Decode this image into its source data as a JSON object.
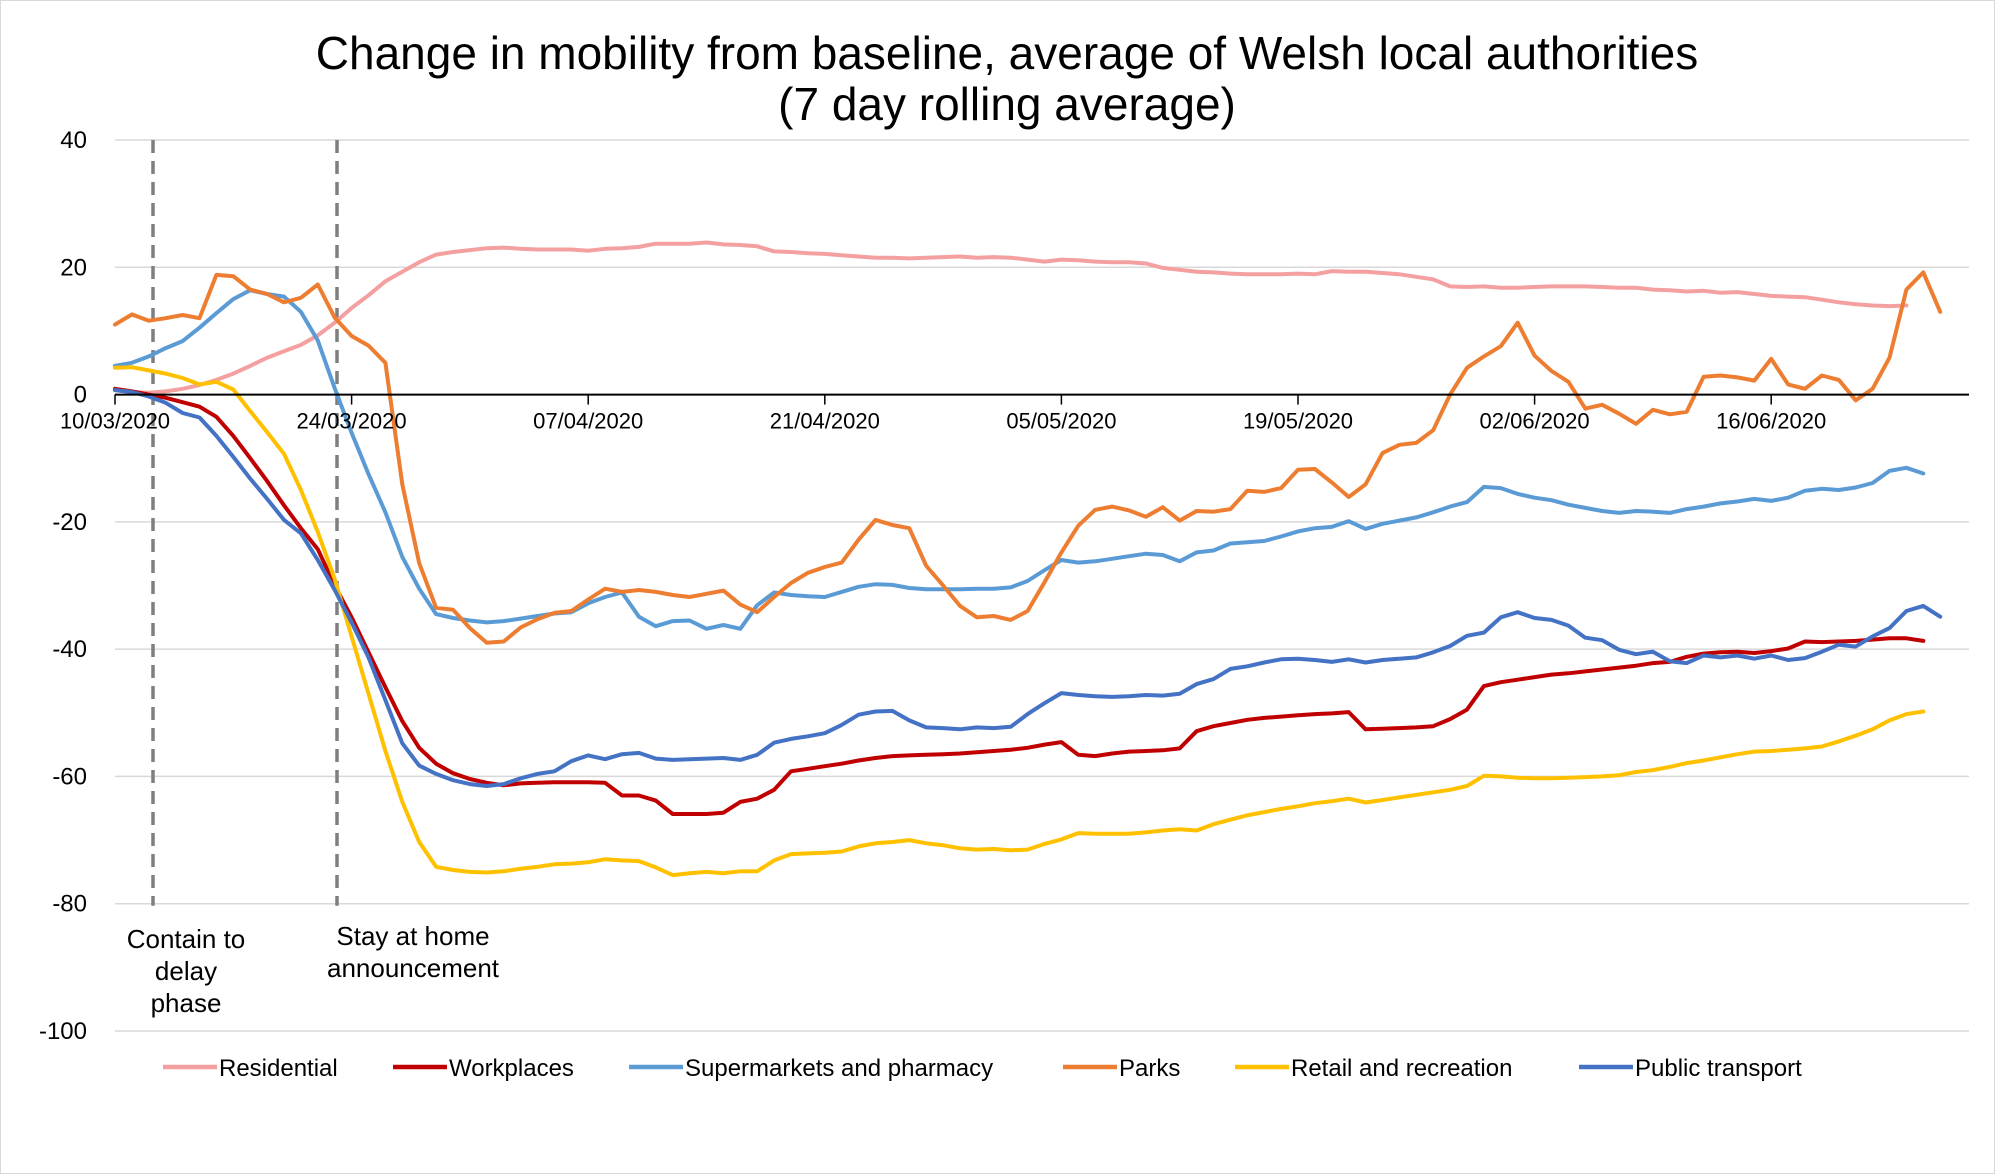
{
  "chart_data": {
    "type": "line",
    "title": "Change in mobility from baseline, average of Welsh local authorities",
    "subtitle": "(7 day rolling average)",
    "xlabel": "",
    "ylabel": "",
    "ylim": [
      -100,
      40
    ],
    "yticks": [
      40,
      20,
      0,
      -20,
      -40,
      -60,
      -80,
      -100
    ],
    "x_start": "10/03/2020",
    "x_end": "28/06/2020",
    "x_tick_labels": [
      "10/03/2020",
      "24/03/2020",
      "07/04/2020",
      "21/04/2020",
      "05/05/2020",
      "19/05/2020",
      "02/06/2020",
      "16/06/2020"
    ],
    "grid": "horizontal",
    "legend_position": "bottom",
    "annotations": [
      {
        "date": "12/03/2020",
        "lines": [
          "Contain to",
          "delay",
          "phase"
        ]
      },
      {
        "date": "23/03/2020",
        "lines": [
          "Stay at home",
          "announcement"
        ]
      }
    ],
    "series": [
      {
        "name": "Residential",
        "color": "#F4A0A0",
        "values": [
          0.7,
          0.4,
          0.3,
          0.5,
          0.9,
          1.5,
          2.3,
          3.3,
          4.5,
          5.8,
          6.8,
          7.8,
          9.3,
          11.3,
          13.6,
          15.6,
          17.8,
          19.3,
          20.8,
          22.0,
          22.4,
          22.7,
          23.0,
          23.1,
          22.9,
          22.8,
          22.8,
          22.8,
          22.6,
          22.9,
          23.0,
          23.2,
          23.7,
          23.7,
          23.7,
          23.9,
          23.6,
          23.5,
          23.3,
          22.5,
          22.4,
          22.2,
          22.1,
          21.9,
          21.7,
          21.5,
          21.5,
          21.4,
          21.5,
          21.6,
          21.7,
          21.5,
          21.6,
          21.5,
          21.2,
          20.9,
          21.2,
          21.1,
          20.9,
          20.8,
          20.8,
          20.6,
          19.9,
          19.6,
          19.3,
          19.2,
          19.0,
          18.9,
          18.9,
          18.9,
          19.0,
          18.9,
          19.4,
          19.3,
          19.3,
          19.1,
          18.9,
          18.5,
          18.1,
          17.0,
          16.9,
          17.0,
          16.8,
          16.8,
          16.9,
          17.0,
          17.0,
          17.0,
          16.9,
          16.8,
          16.8,
          16.5,
          16.4,
          16.2,
          16.3,
          16.0,
          16.1,
          15.8,
          15.5,
          15.4,
          15.3,
          14.9,
          14.5,
          14.2,
          14.0,
          13.9,
          14.0
        ]
      },
      {
        "name": "Workplaces",
        "color": "#C00000",
        "values": [
          0.9,
          0.5,
          0.0,
          -0.5,
          -1.2,
          -1.9,
          -3.5,
          -6.5,
          -10.0,
          -13.6,
          -17.4,
          -21.0,
          -24.3,
          -30.0,
          -35.0,
          -40.5,
          -46.0,
          -51.3,
          -55.5,
          -58.0,
          -59.5,
          -60.4,
          -61.0,
          -61.4,
          -61.1,
          -61.0,
          -60.9,
          -60.9,
          -60.9,
          -61.0,
          -63.0,
          -63.0,
          -63.8,
          -65.9,
          -65.9,
          -65.9,
          -65.7,
          -64.0,
          -63.5,
          -62.1,
          -59.2,
          -58.8,
          -58.4,
          -58.0,
          -57.5,
          -57.1,
          -56.8,
          -56.7,
          -56.6,
          -56.5,
          -56.4,
          -56.2,
          -56.0,
          -55.8,
          -55.5,
          -55.0,
          -54.6,
          -56.6,
          -56.8,
          -56.4,
          -56.1,
          -56.0,
          -55.9,
          -55.6,
          -52.9,
          -52.1,
          -51.6,
          -51.1,
          -50.8,
          -50.6,
          -50.4,
          -50.2,
          -50.1,
          -49.9,
          -52.6,
          -52.5,
          -52.4,
          -52.3,
          -52.1,
          -51.0,
          -49.5,
          -45.8,
          -45.2,
          -44.8,
          -44.4,
          -44.0,
          -43.8,
          -43.5,
          -43.2,
          -42.9,
          -42.6,
          -42.2,
          -42.0,
          -41.2,
          -40.7,
          -40.5,
          -40.4,
          -40.6,
          -40.3,
          -39.9,
          -38.8,
          -38.9,
          -38.8,
          -38.7,
          -38.5,
          -38.3,
          -38.3,
          -38.7
        ]
      },
      {
        "name": "Supermarkets and pharmacy",
        "color": "#5B9BD5",
        "values": [
          4.5,
          5.0,
          6.0,
          7.3,
          8.4,
          10.5,
          12.8,
          15.0,
          16.4,
          15.8,
          15.4,
          13.0,
          8.5,
          1.0,
          -6.0,
          -12.5,
          -18.5,
          -25.5,
          -30.5,
          -34.5,
          -35.1,
          -35.5,
          -35.8,
          -35.6,
          -35.2,
          -34.8,
          -34.4,
          -34.2,
          -32.8,
          -31.8,
          -31.1,
          -34.9,
          -36.4,
          -35.6,
          -35.5,
          -36.8,
          -36.2,
          -36.8,
          -33.1,
          -31.1,
          -31.5,
          -31.7,
          -31.8,
          -31.0,
          -30.2,
          -29.8,
          -29.9,
          -30.4,
          -30.6,
          -30.6,
          -30.6,
          -30.5,
          -30.5,
          -30.3,
          -29.3,
          -27.6,
          -26.0,
          -26.4,
          -26.2,
          -25.8,
          -25.4,
          -25.0,
          -25.2,
          -26.2,
          -24.8,
          -24.5,
          -23.4,
          -23.2,
          -23.0,
          -22.3,
          -21.5,
          -21.0,
          -20.8,
          -19.9,
          -21.1,
          -20.3,
          -19.8,
          -19.3,
          -18.5,
          -17.6,
          -16.9,
          -14.5,
          -14.7,
          -15.6,
          -16.2,
          -16.6,
          -17.3,
          -17.8,
          -18.3,
          -18.6,
          -18.3,
          -18.4,
          -18.6,
          -18.0,
          -17.6,
          -17.1,
          -16.8,
          -16.4,
          -16.7,
          -16.2,
          -15.1,
          -14.8,
          -15.0,
          -14.6,
          -13.9,
          -12.0,
          -11.5,
          -12.4
        ]
      },
      {
        "name": "Parks",
        "color": "#ED7D31",
        "values": [
          11.0,
          12.6,
          11.6,
          12.0,
          12.5,
          12.0,
          18.8,
          18.6,
          16.5,
          15.8,
          14.5,
          15.2,
          17.3,
          12.1,
          9.2,
          7.7,
          5.0,
          -14.1,
          -26.5,
          -33.5,
          -33.8,
          -36.7,
          -39.0,
          -38.8,
          -36.6,
          -35.3,
          -34.3,
          -34.0,
          -32.2,
          -30.5,
          -31.0,
          -30.7,
          -31.0,
          -31.5,
          -31.8,
          -31.3,
          -30.8,
          -33.0,
          -34.2,
          -31.8,
          -29.6,
          -28.0,
          -27.1,
          -26.4,
          -22.8,
          -19.7,
          -20.5,
          -21.0,
          -26.9,
          -30.0,
          -33.2,
          -35.0,
          -34.8,
          -35.4,
          -34.0,
          -29.5,
          -24.8,
          -20.6,
          -18.1,
          -17.6,
          -18.2,
          -19.2,
          -17.7,
          -19.8,
          -18.3,
          -18.4,
          -18.0,
          -15.1,
          -15.3,
          -14.7,
          -11.8,
          -11.7,
          -13.8,
          -16.1,
          -14.1,
          -9.2,
          -7.9,
          -7.6,
          -5.6,
          0.0,
          4.2,
          6.0,
          7.6,
          11.3,
          6.1,
          3.7,
          2.0,
          -2.2,
          -1.6,
          -3.0,
          -4.6,
          -2.4,
          -3.1,
          -2.7,
          2.8,
          3.0,
          2.7,
          2.2,
          5.6,
          1.6,
          0.9,
          3.0,
          2.3,
          -0.9,
          0.9,
          5.8,
          16.5,
          19.2,
          13.0
        ]
      },
      {
        "name": "Retail and recreation",
        "color": "#FFC000",
        "values": [
          4.2,
          4.3,
          3.8,
          3.3,
          2.6,
          1.6,
          2.0,
          0.8,
          -2.6,
          -5.9,
          -9.3,
          -15.0,
          -21.6,
          -29.0,
          -38.0,
          -47.0,
          -56.0,
          -64.0,
          -70.3,
          -74.2,
          -74.7,
          -75.0,
          -75.1,
          -74.9,
          -74.5,
          -74.2,
          -73.8,
          -73.7,
          -73.5,
          -73.0,
          -73.2,
          -73.3,
          -74.3,
          -75.5,
          -75.2,
          -75.0,
          -75.2,
          -74.9,
          -74.9,
          -73.2,
          -72.2,
          -72.1,
          -72.0,
          -71.8,
          -71.0,
          -70.5,
          -70.3,
          -70.0,
          -70.5,
          -70.8,
          -71.3,
          -71.5,
          -71.4,
          -71.6,
          -71.5,
          -70.6,
          -69.9,
          -68.9,
          -69.0,
          -69.0,
          -69.0,
          -68.8,
          -68.5,
          -68.3,
          -68.5,
          -67.5,
          -66.8,
          -66.1,
          -65.6,
          -65.1,
          -64.7,
          -64.2,
          -63.9,
          -63.5,
          -64.1,
          -63.7,
          -63.3,
          -62.9,
          -62.5,
          -62.1,
          -61.5,
          -59.9,
          -60.0,
          -60.2,
          -60.3,
          -60.3,
          -60.2,
          -60.1,
          -60.0,
          -59.8,
          -59.3,
          -59.0,
          -58.5,
          -57.9,
          -57.5,
          -57.0,
          -56.5,
          -56.1,
          -56.0,
          -55.8,
          -55.6,
          -55.3,
          -54.5,
          -53.6,
          -52.6,
          -51.2,
          -50.2,
          -49.8
        ]
      },
      {
        "name": "Public transport",
        "color": "#4472C4",
        "values": [
          0.7,
          0.4,
          -0.3,
          -1.3,
          -2.9,
          -3.6,
          -6.5,
          -9.8,
          -13.2,
          -16.4,
          -19.7,
          -21.8,
          -26.0,
          -30.7,
          -35.8,
          -41.3,
          -48.0,
          -54.8,
          -58.3,
          -59.6,
          -60.6,
          -61.2,
          -61.5,
          -61.2,
          -60.3,
          -59.6,
          -59.2,
          -57.6,
          -56.7,
          -57.3,
          -56.5,
          -56.3,
          -57.2,
          -57.4,
          -57.3,
          -57.2,
          -57.1,
          -57.4,
          -56.6,
          -54.7,
          -54.1,
          -53.7,
          -53.2,
          -51.9,
          -50.3,
          -49.8,
          -49.7,
          -51.2,
          -52.3,
          -52.4,
          -52.6,
          -52.3,
          -52.4,
          -52.2,
          -50.2,
          -48.5,
          -46.9,
          -47.2,
          -47.4,
          -47.5,
          -47.4,
          -47.2,
          -47.3,
          -47.0,
          -45.5,
          -44.7,
          -43.1,
          -42.7,
          -42.1,
          -41.6,
          -41.5,
          -41.7,
          -42.0,
          -41.6,
          -42.1,
          -41.7,
          -41.5,
          -41.3,
          -40.5,
          -39.5,
          -37.9,
          -37.4,
          -35.0,
          -34.2,
          -35.1,
          -35.4,
          -36.3,
          -38.2,
          -38.6,
          -40.1,
          -40.8,
          -40.4,
          -41.9,
          -42.2,
          -41.0,
          -41.3,
          -41.0,
          -41.5,
          -41.0,
          -41.7,
          -41.4,
          -40.4,
          -39.3,
          -39.6,
          -38.0,
          -36.7,
          -34.0,
          -33.2,
          -34.9
        ]
      }
    ]
  }
}
